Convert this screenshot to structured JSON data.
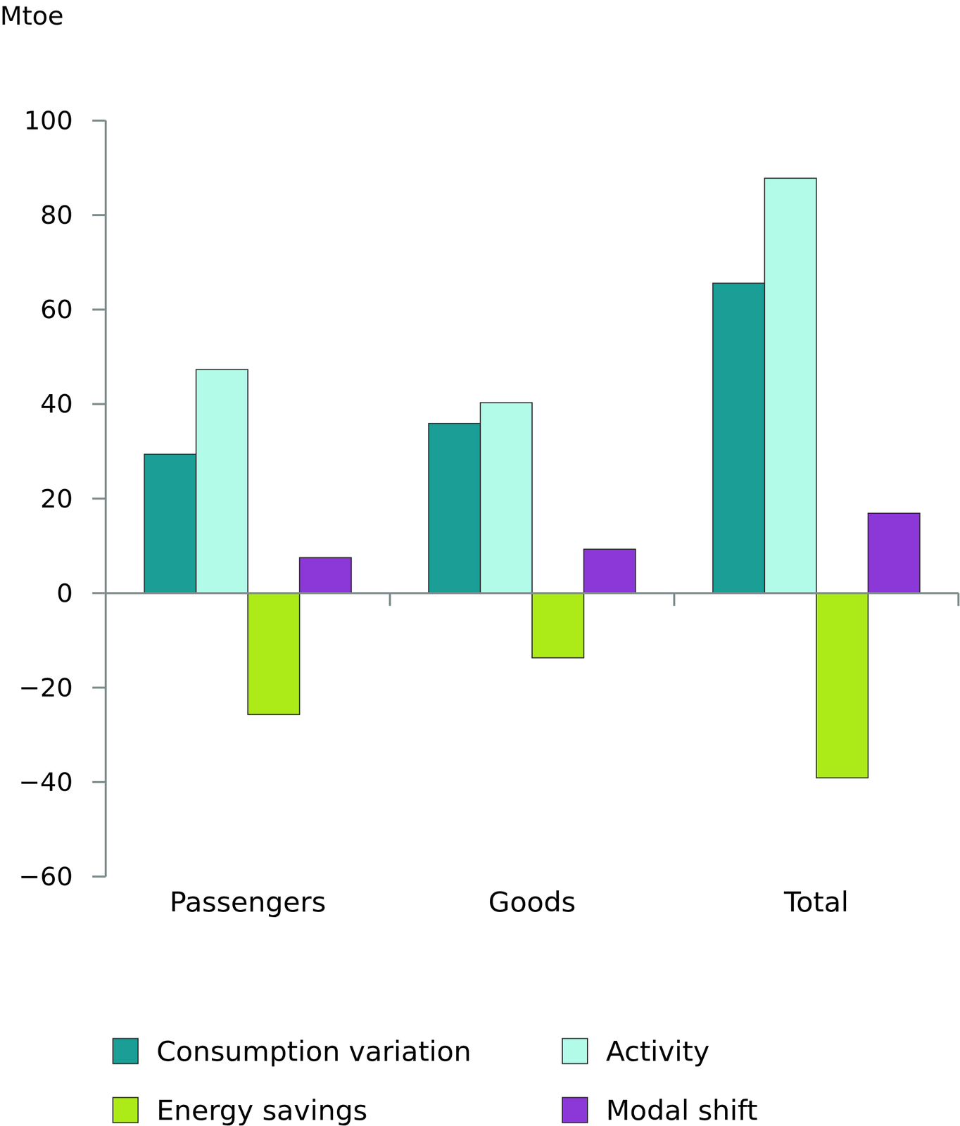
{
  "chart_data": {
    "type": "bar",
    "y_label": "Mtoe",
    "categories": [
      "Passengers",
      "Goods",
      "Total"
    ],
    "series": [
      {
        "name": "Consumption variation",
        "color": "#1a9e96",
        "values": [
          29.4,
          35.9,
          65.6
        ]
      },
      {
        "name": "Activity",
        "color": "#b3fbe9",
        "values": [
          47.3,
          40.3,
          87.8
        ]
      },
      {
        "name": "Energy savings",
        "color": "#acea18",
        "values": [
          -25.7,
          -13.7,
          -39.1
        ]
      },
      {
        "name": "Modal shift",
        "color": "#8c37d8",
        "values": [
          7.5,
          9.3,
          16.9
        ]
      }
    ],
    "ylim": [
      -60,
      100
    ],
    "yticks": [
      {
        "value": -60,
        "label": "−60"
      },
      {
        "value": -40,
        "label": "−40"
      },
      {
        "value": -20,
        "label": "−20"
      },
      0,
      20,
      40,
      60,
      80,
      100
    ],
    "grid": false,
    "legend": "bottom"
  }
}
